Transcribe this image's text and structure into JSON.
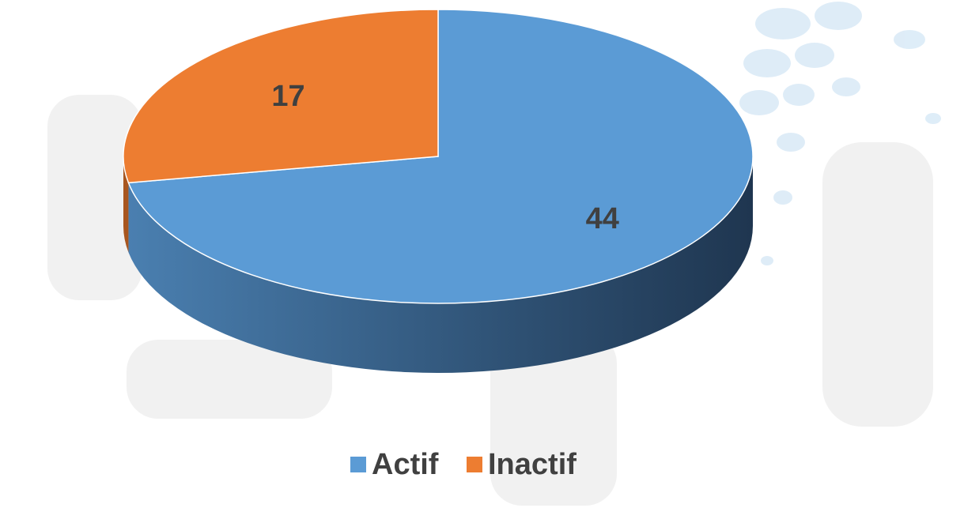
{
  "chart_data": {
    "type": "pie3d",
    "categories": [
      "Actif",
      "Inactif"
    ],
    "values": [
      44,
      17
    ],
    "colors": [
      "#5b9bd5",
      "#ed7d31"
    ],
    "side_colors": [
      "#2e4f73",
      "#a8561f"
    ],
    "legend": "bottom"
  }
}
